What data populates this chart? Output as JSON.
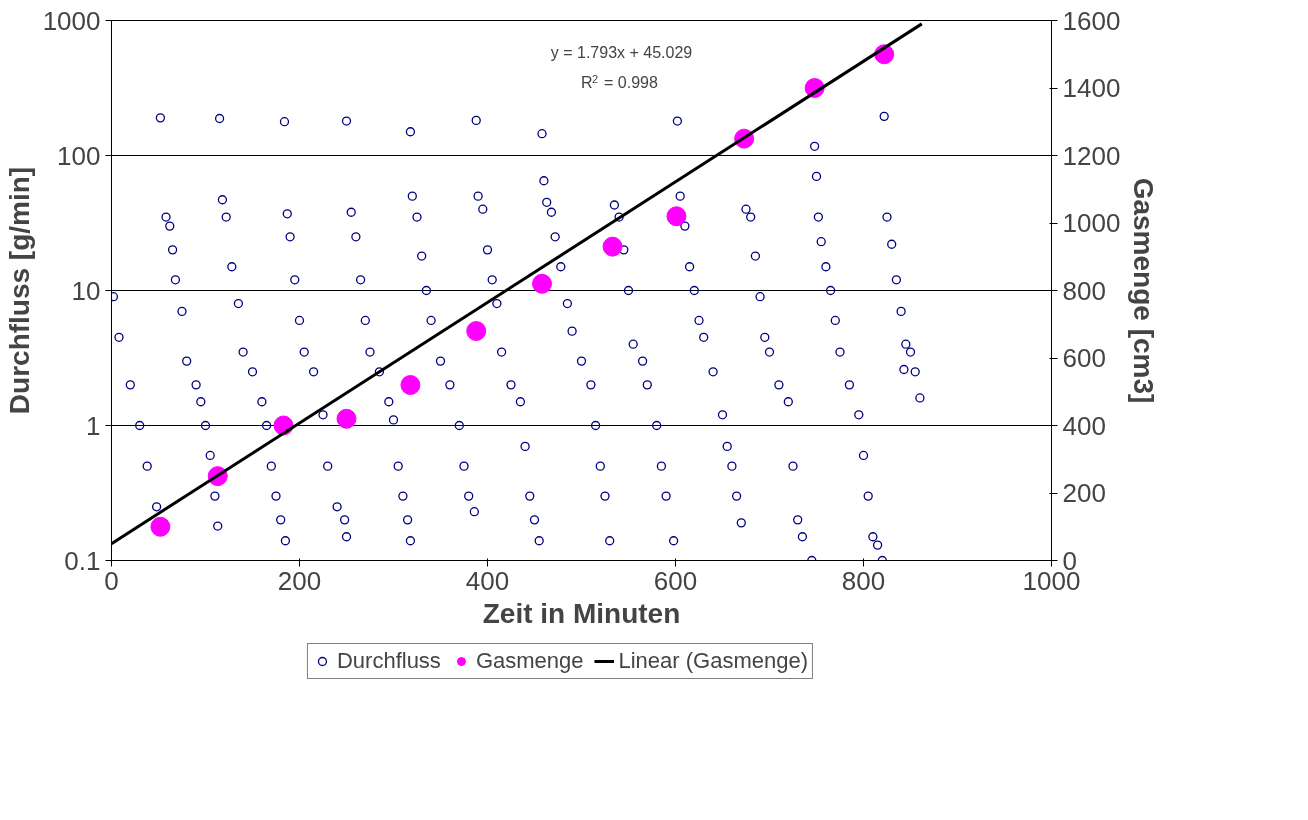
{
  "chart_data": {
    "type": "scatter",
    "xlabel": "Zeit in Minuten",
    "ylabel": "Durchfluss [g/min]",
    "y2label": "Gasmenge [cm3]",
    "xlim": [
      0,
      1000
    ],
    "xticks": [
      0,
      200,
      400,
      600,
      800,
      1000
    ],
    "ylim": [
      0.1,
      1000
    ],
    "yticks": [
      0.1,
      1,
      10,
      100,
      1000
    ],
    "log": "y",
    "y2lim": [
      0,
      1600
    ],
    "y2ticks": [
      0,
      200,
      400,
      600,
      800,
      1000,
      1200,
      1400,
      1600
    ],
    "grid": "y",
    "legend": "bottom",
    "annotations": [
      "y = 1.793x + 45.029",
      "R$^{2}$ = 0.998"
    ],
    "series": [
      {
        "name": "Durchfluss",
        "marker": "circle",
        "color": "#000080",
        "x": [
          52,
          115,
          184,
          250,
          318,
          388,
          458,
          602,
          822,
          748,
          750,
          2,
          8,
          20,
          30,
          38,
          48,
          58,
          62,
          65,
          68,
          75,
          80,
          90,
          95,
          100,
          105,
          110,
          113,
          118,
          122,
          128,
          135,
          140,
          150,
          160,
          165,
          170,
          175,
          180,
          185,
          187,
          190,
          195,
          200,
          205,
          215,
          225,
          230,
          240,
          248,
          250,
          255,
          260,
          265,
          270,
          275,
          285,
          295,
          300,
          305,
          310,
          315,
          318,
          320,
          325,
          330,
          335,
          340,
          350,
          360,
          370,
          375,
          380,
          386,
          390,
          395,
          400,
          405,
          410,
          415,
          425,
          435,
          440,
          445,
          450,
          455,
          460,
          463,
          468,
          472,
          478,
          485,
          490,
          500,
          510,
          515,
          520,
          525,
          530,
          535,
          540,
          545,
          550,
          555,
          565,
          570,
          580,
          585,
          590,
          598,
          605,
          610,
          615,
          620,
          625,
          630,
          640,
          650,
          655,
          660,
          665,
          670,
          675,
          680,
          685,
          690,
          695,
          700,
          710,
          720,
          725,
          730,
          735,
          745,
          752,
          755,
          760,
          765,
          770,
          775,
          785,
          795,
          800,
          805,
          810,
          815,
          820,
          825,
          830,
          835,
          840,
          843,
          845,
          850,
          855,
          860
        ],
        "values": [
          190,
          188,
          178,
          180,
          150,
          182,
          145,
          180,
          195,
          117,
          70,
          9,
          4.5,
          2,
          1,
          0.5,
          0.25,
          35,
          30,
          20,
          12,
          7,
          3,
          2,
          1.5,
          1,
          0.6,
          0.3,
          0.18,
          47,
          35,
          15,
          8,
          3.5,
          2.5,
          1.5,
          1,
          0.5,
          0.3,
          0.2,
          0.14,
          37,
          25,
          12,
          6,
          3.5,
          2.5,
          1.2,
          0.5,
          0.25,
          0.2,
          0.15,
          38,
          25,
          12,
          6,
          3.5,
          2.5,
          1.5,
          1.1,
          0.5,
          0.3,
          0.2,
          0.14,
          50,
          35,
          18,
          10,
          6,
          3,
          2,
          1,
          0.5,
          0.3,
          0.23,
          50,
          40,
          20,
          12,
          8,
          3.5,
          2,
          1.5,
          0.7,
          0.3,
          0.2,
          0.14,
          65,
          45,
          38,
          25,
          15,
          8,
          5,
          3,
          2,
          1,
          0.5,
          0.3,
          0.14,
          43,
          35,
          20,
          10,
          4,
          3,
          2,
          1,
          0.5,
          0.3,
          0.14,
          50,
          30,
          15,
          10,
          6,
          4.5,
          2.5,
          1.2,
          0.7,
          0.5,
          0.3,
          0.19,
          40,
          35,
          18,
          9,
          4.5,
          3.5,
          2,
          1.5,
          0.5,
          0.2,
          0.15,
          0.1,
          35,
          23,
          15,
          10,
          6,
          3.5,
          2,
          1.2,
          0.6,
          0.3,
          0.15,
          0.13,
          0.1,
          35,
          22,
          12,
          7,
          2.6,
          4,
          3.5,
          2.5,
          1.6
        ]
      },
      {
        "name": "Gasmenge",
        "marker": "circle",
        "color": "#ff00ff",
        "axis": "y2",
        "x": [
          52,
          113,
          183,
          250,
          318,
          388,
          458,
          533,
          601,
          673,
          748,
          822
        ],
        "values": [
          100,
          250,
          400,
          420,
          520,
          680,
          820,
          930,
          1020,
          1250,
          1400,
          1500
        ]
      },
      {
        "name": "Linear (Gasmenge)",
        "type": "line",
        "line_style": "solid",
        "color": "#000000",
        "axis": "y2",
        "x": [
          0,
          862
        ],
        "values": [
          50,
          1590
        ]
      }
    ]
  }
}
